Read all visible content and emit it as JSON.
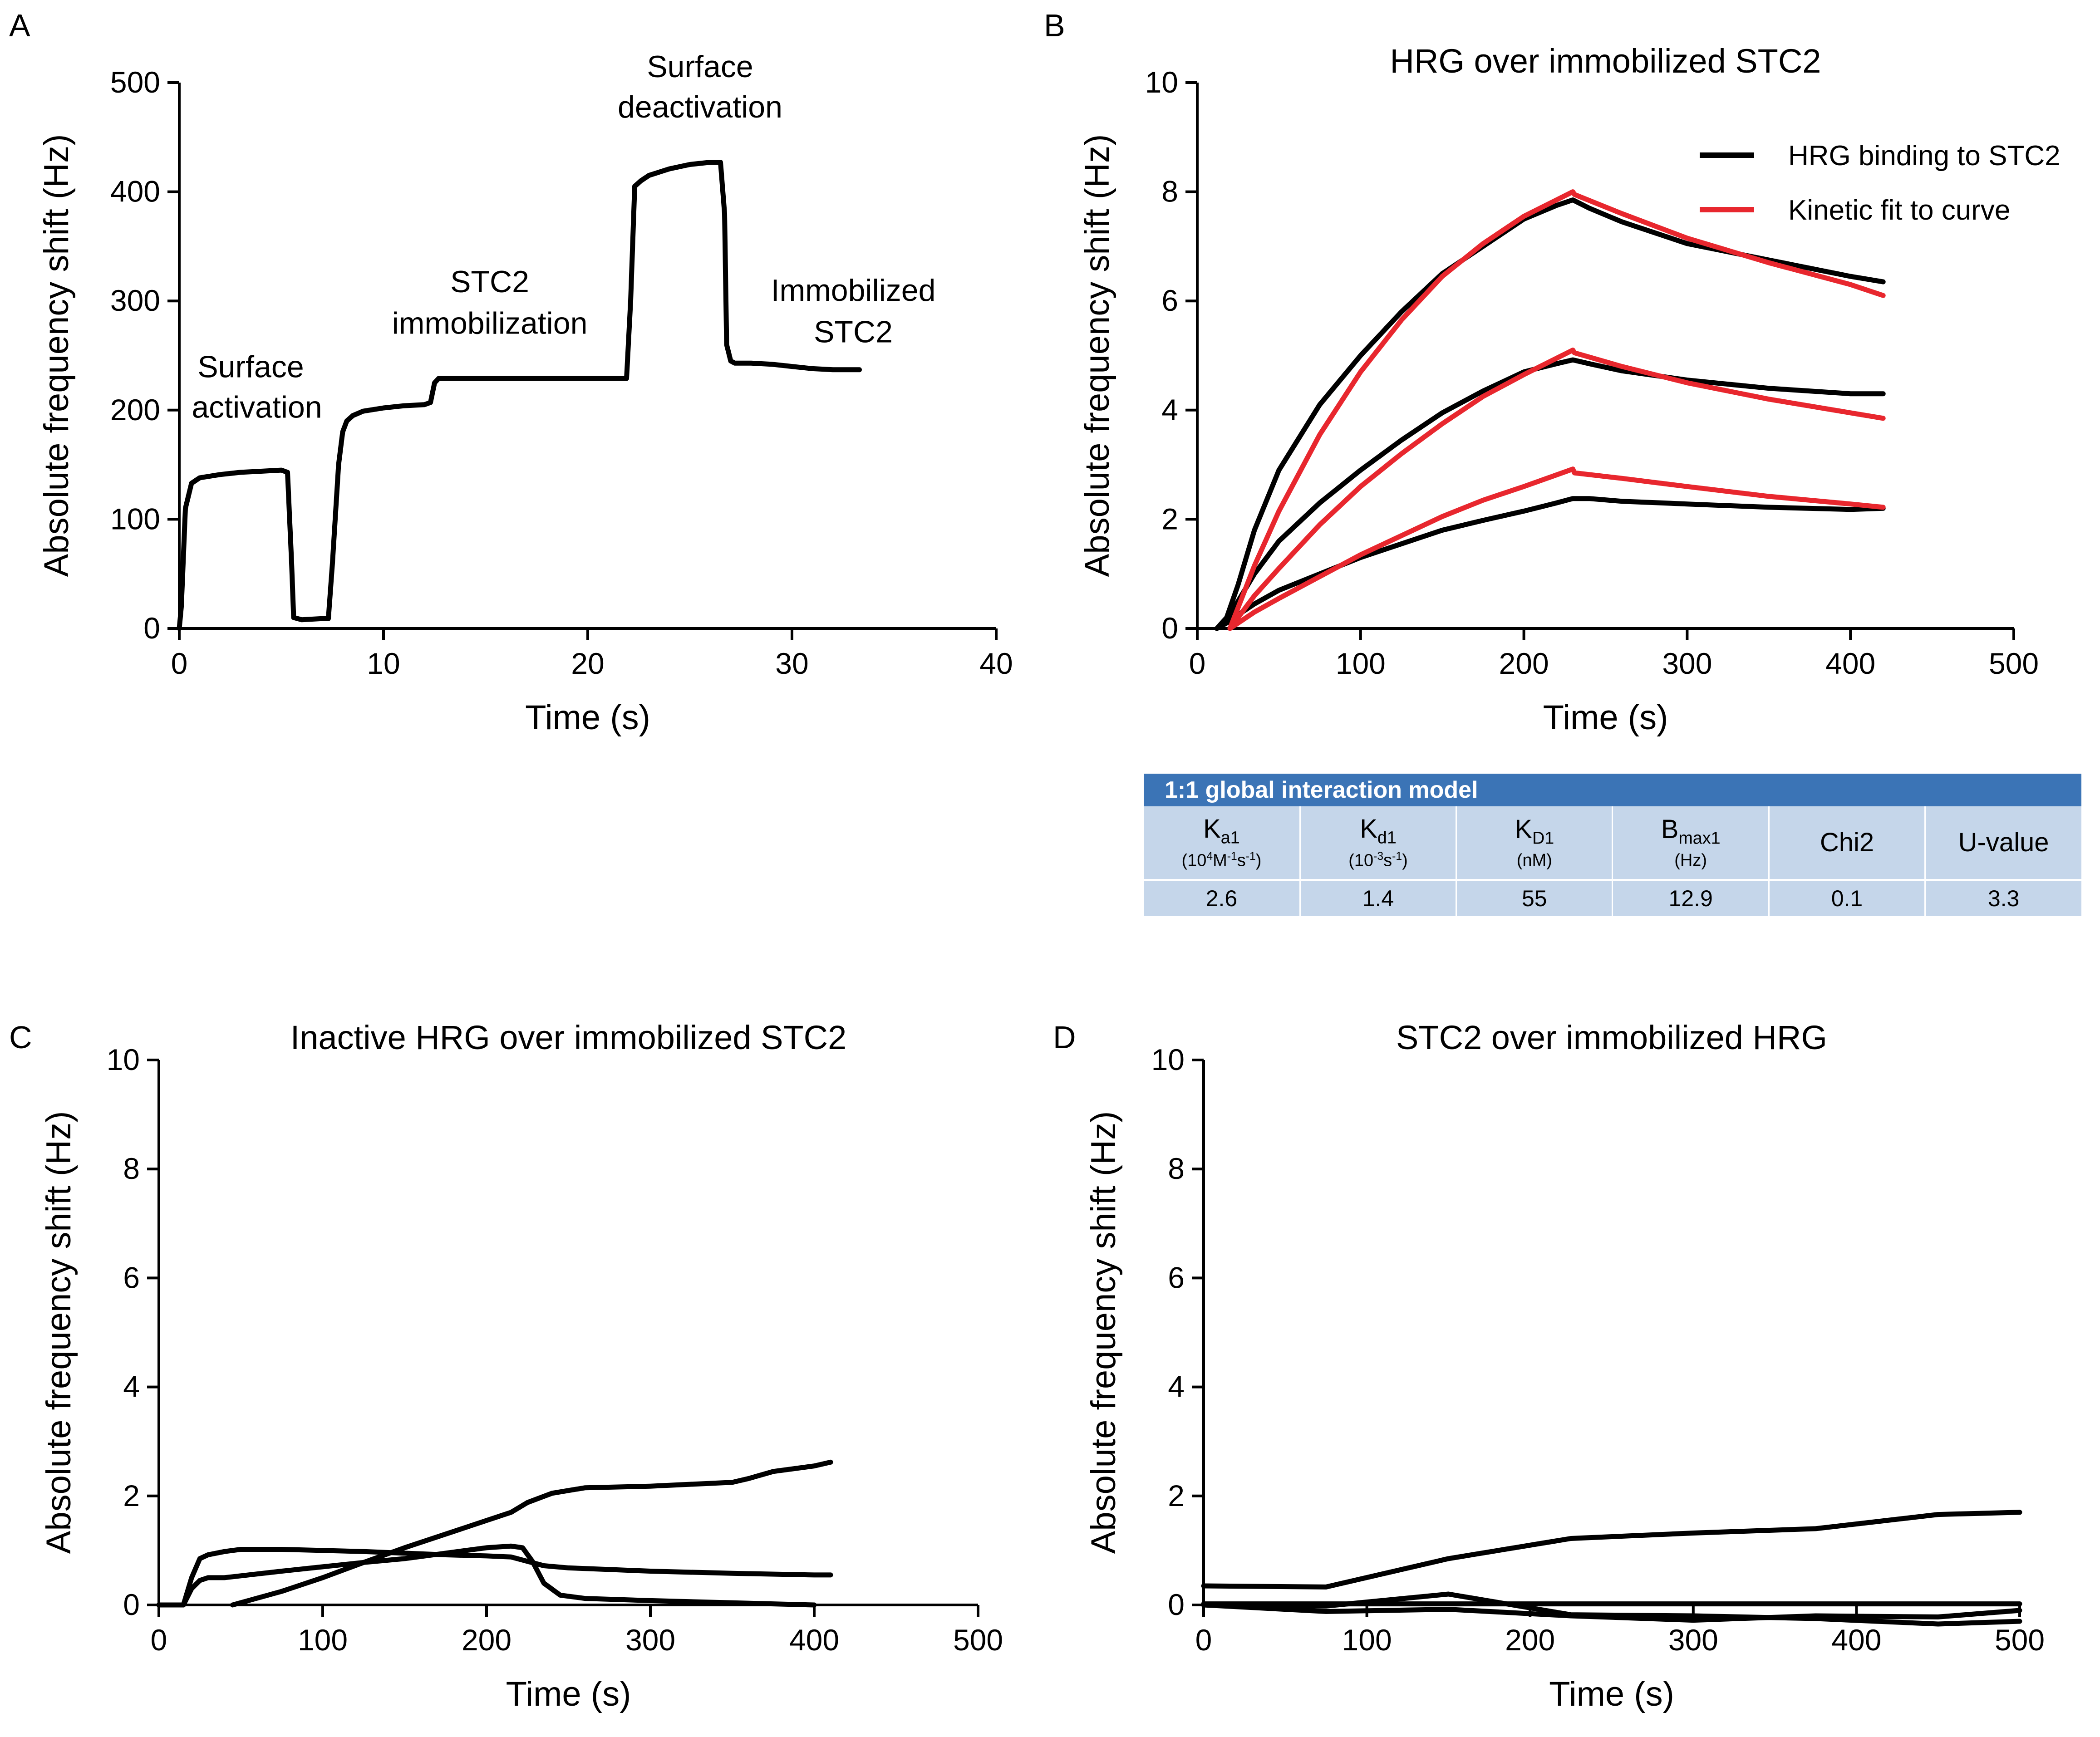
{
  "chart_data": [
    {
      "panel": "A",
      "type": "line",
      "title": "",
      "xlabel": "Time (s)",
      "ylabel": "Absolute frequency shift (Hz)",
      "xlim": [
        0,
        40
      ],
      "ylim": [
        0,
        500
      ],
      "xticks": [
        0,
        10,
        20,
        30,
        40
      ],
      "yticks": [
        0,
        100,
        200,
        300,
        400,
        500
      ],
      "grid": false,
      "series": [
        {
          "color": "#000000",
          "x": [
            0,
            0.1,
            0.3,
            0.6,
            1,
            2,
            3,
            4,
            5,
            5.3,
            5.5,
            5.6,
            6,
            7,
            7.3,
            7.5,
            7.8,
            8,
            8.2,
            8.5,
            9,
            10,
            11,
            12,
            12.3,
            12.5,
            12.7,
            13,
            14,
            16,
            18,
            20,
            21,
            21.9,
            22.1,
            22.3,
            22.6,
            23,
            24,
            25,
            26,
            26.5,
            26.7,
            26.8,
            27,
            27.2,
            28,
            29,
            30,
            31,
            32,
            33.3
          ],
          "y": [
            0,
            20,
            110,
            133,
            138,
            141,
            143,
            144,
            145,
            143,
            60,
            10,
            8,
            9,
            9,
            60,
            150,
            180,
            190,
            195,
            199,
            202,
            204,
            205,
            207,
            225,
            229,
            229,
            229,
            229,
            229,
            229,
            229,
            229,
            300,
            405,
            410,
            415,
            421,
            425,
            427,
            427,
            380,
            260,
            245,
            243,
            243,
            242,
            240,
            238,
            237,
            237
          ]
        }
      ],
      "annotations": [
        {
          "text": "Surface",
          "x": 3.5,
          "y": 230
        },
        {
          "text": "activation",
          "x": 3.8,
          "y": 193
        },
        {
          "text": "STC2",
          "x": 15.2,
          "y": 308
        },
        {
          "text": "immobilization",
          "x": 15.2,
          "y": 270
        },
        {
          "text": "Surface",
          "x": 25.5,
          "y": 505
        },
        {
          "text": "deactivation",
          "x": 25.5,
          "y": 468
        },
        {
          "text": "Immobilized",
          "x": 33,
          "y": 300
        },
        {
          "text": "STC2",
          "x": 33,
          "y": 262
        }
      ]
    },
    {
      "panel": "B",
      "type": "line",
      "title": "HRG over immobilized STC2",
      "xlabel": "Time (s)",
      "ylabel": "Absolute frequency shift (Hz)",
      "xlim": [
        0,
        500
      ],
      "ylim": [
        0,
        10
      ],
      "xticks": [
        0,
        100,
        200,
        300,
        400,
        500
      ],
      "yticks": [
        0,
        2,
        4,
        6,
        8,
        10
      ],
      "grid": false,
      "legend_position": "top-right",
      "legend": [
        {
          "label": "HRG binding to STC2",
          "color": "#000000"
        },
        {
          "label": "Kinetic fit to curve",
          "color": "#e8272e"
        }
      ],
      "series": [
        {
          "color": "#000000",
          "x": [
            12,
            18,
            25,
            35,
            50,
            75,
            100,
            125,
            150,
            175,
            200,
            220,
            230,
            240,
            260,
            300,
            350,
            400,
            420
          ],
          "y": [
            0,
            0.2,
            0.8,
            1.8,
            2.9,
            4.1,
            5.0,
            5.8,
            6.5,
            7.0,
            7.5,
            7.75,
            7.85,
            7.7,
            7.45,
            7.05,
            6.75,
            6.45,
            6.35
          ]
        },
        {
          "color": "#000000",
          "x": [
            12,
            18,
            25,
            35,
            50,
            75,
            100,
            125,
            150,
            175,
            200,
            220,
            230,
            240,
            260,
            300,
            350,
            400,
            420
          ],
          "y": [
            0,
            0.15,
            0.5,
            1.0,
            1.6,
            2.3,
            2.9,
            3.45,
            3.95,
            4.35,
            4.7,
            4.85,
            4.92,
            4.85,
            4.72,
            4.55,
            4.4,
            4.3,
            4.3
          ]
        },
        {
          "color": "#000000",
          "x": [
            12,
            18,
            25,
            35,
            50,
            75,
            100,
            125,
            150,
            175,
            200,
            220,
            230,
            240,
            260,
            300,
            350,
            400,
            420
          ],
          "y": [
            0,
            0.1,
            0.25,
            0.45,
            0.7,
            1.0,
            1.3,
            1.55,
            1.8,
            1.98,
            2.15,
            2.3,
            2.38,
            2.38,
            2.33,
            2.28,
            2.22,
            2.18,
            2.2
          ]
        },
        {
          "color": "#e8272e",
          "x": [
            20,
            35,
            50,
            75,
            100,
            125,
            150,
            175,
            200,
            230,
            231,
            260,
            300,
            350,
            400,
            420
          ],
          "y": [
            0,
            1.15,
            2.15,
            3.55,
            4.7,
            5.65,
            6.45,
            7.05,
            7.55,
            8.0,
            7.95,
            7.6,
            7.15,
            6.7,
            6.3,
            6.1
          ]
        },
        {
          "color": "#e8272e",
          "x": [
            20,
            35,
            50,
            75,
            100,
            125,
            150,
            175,
            200,
            230,
            231,
            260,
            300,
            350,
            400,
            420
          ],
          "y": [
            0,
            0.6,
            1.1,
            1.9,
            2.6,
            3.2,
            3.75,
            4.25,
            4.65,
            5.1,
            5.05,
            4.8,
            4.5,
            4.2,
            3.95,
            3.85
          ]
        },
        {
          "color": "#e8272e",
          "x": [
            20,
            35,
            50,
            75,
            100,
            125,
            150,
            175,
            200,
            230,
            231,
            260,
            300,
            350,
            400,
            420
          ],
          "y": [
            0,
            0.3,
            0.55,
            0.95,
            1.35,
            1.7,
            2.05,
            2.35,
            2.6,
            2.92,
            2.85,
            2.75,
            2.6,
            2.42,
            2.28,
            2.22
          ]
        }
      ]
    },
    {
      "panel": "C",
      "type": "line",
      "title": "Inactive HRG over immobilized STC2",
      "xlabel": "Time (s)",
      "ylabel": "Absolute frequency shift (Hz)",
      "xlim": [
        0,
        500
      ],
      "ylim": [
        0,
        10
      ],
      "xticks": [
        0,
        100,
        200,
        300,
        400,
        500
      ],
      "yticks": [
        0,
        2,
        4,
        6,
        8,
        10
      ],
      "grid": false,
      "series": [
        {
          "color": "#000000",
          "x": [
            0,
            15,
            20,
            25,
            30,
            40,
            50,
            75,
            100,
            125,
            150,
            175,
            200,
            215,
            225,
            235,
            250,
            275,
            300,
            350,
            400,
            410
          ],
          "y": [
            0,
            0,
            0.5,
            0.85,
            0.92,
            0.98,
            1.02,
            1.02,
            1.0,
            0.98,
            0.95,
            0.92,
            0.9,
            0.88,
            0.8,
            0.72,
            0.68,
            0.65,
            0.62,
            0.58,
            0.55,
            0.55
          ]
        },
        {
          "color": "#000000",
          "x": [
            0,
            15,
            20,
            25,
            30,
            40,
            75,
            100,
            125,
            150,
            175,
            200,
            215,
            222,
            228,
            235,
            245,
            260,
            300,
            350,
            400
          ],
          "y": [
            0,
            0,
            0.3,
            0.45,
            0.5,
            0.5,
            0.62,
            0.7,
            0.78,
            0.85,
            0.95,
            1.05,
            1.08,
            1.05,
            0.8,
            0.4,
            0.18,
            0.12,
            0.08,
            0.04,
            0
          ]
        },
        {
          "color": "#000000",
          "x": [
            45,
            75,
            100,
            125,
            150,
            175,
            200,
            215,
            225,
            240,
            260,
            300,
            350,
            360,
            375,
            400,
            410
          ],
          "y": [
            0,
            0.25,
            0.5,
            0.78,
            1.05,
            1.3,
            1.55,
            1.7,
            1.88,
            2.05,
            2.15,
            2.18,
            2.25,
            2.32,
            2.45,
            2.55,
            2.62
          ]
        }
      ]
    },
    {
      "panel": "D",
      "type": "line",
      "title": "STC2 over immobilized HRG",
      "xlabel": "Time (s)",
      "ylabel": "Absolute frequency shift (Hz)",
      "xlim": [
        0,
        500
      ],
      "ylim": [
        0,
        10
      ],
      "xticks": [
        0,
        100,
        200,
        300,
        400,
        500
      ],
      "yticks": [
        0,
        2,
        4,
        6,
        8,
        10
      ],
      "grid": false,
      "series": [
        {
          "color": "#000000",
          "x": [
            0,
            75,
            150,
            225,
            300,
            375,
            450,
            500
          ],
          "y": [
            0.35,
            0.33,
            0.85,
            1.22,
            1.32,
            1.4,
            1.66,
            1.7
          ]
        },
        {
          "color": "#000000",
          "x": [
            0,
            500
          ],
          "y": [
            0.02,
            0.02
          ]
        },
        {
          "color": "#000000",
          "x": [
            0,
            75,
            150,
            225,
            300,
            375,
            450,
            500
          ],
          "y": [
            0,
            -0.02,
            0.2,
            -0.18,
            -0.2,
            -0.25,
            -0.35,
            -0.3
          ]
        },
        {
          "color": "#000000",
          "x": [
            0,
            75,
            150,
            225,
            300,
            375,
            450,
            500
          ],
          "y": [
            0,
            -0.12,
            -0.08,
            -0.2,
            -0.28,
            -0.2,
            -0.22,
            -0.1
          ]
        }
      ]
    }
  ],
  "panel_labels": {
    "a": "A",
    "b": "B",
    "c": "C",
    "d": "D"
  },
  "kinetics_table": {
    "title": "1:1 global interaction model",
    "headers": [
      {
        "main": "K",
        "sub": "a1",
        "unit_html": "(10<sup>4</sup>M<sup>-1</sup>s<sup>-1</sup>)"
      },
      {
        "main": "K",
        "sub": "d1",
        "unit_html": "(10<sup>-3</sup>s<sup>-1</sup>)"
      },
      {
        "main": "K",
        "sub": "D1",
        "unit_html": "(nM)"
      },
      {
        "main": "B",
        "sub": "max1",
        "unit_html": "(Hz)"
      },
      {
        "main": "Chi2",
        "sub": "",
        "unit_html": ""
      },
      {
        "main": "U-value",
        "sub": "",
        "unit_html": ""
      }
    ],
    "values": [
      "2.6",
      "1.4",
      "55",
      "12.9",
      "0.1",
      "3.3"
    ]
  }
}
